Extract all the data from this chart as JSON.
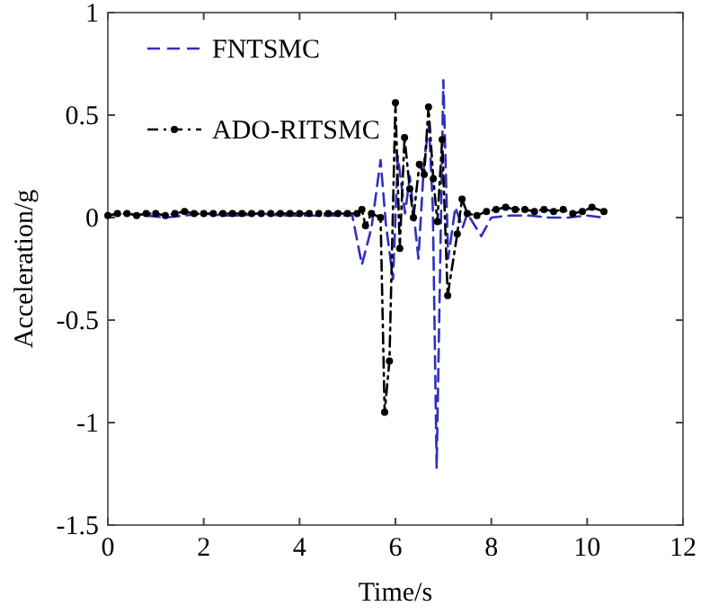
{
  "chart_data": {
    "type": "line",
    "xlabel": "Time/s",
    "ylabel": "Acceleration/g",
    "xlim": [
      0,
      12
    ],
    "ylim": [
      -1.5,
      1
    ],
    "xticks": [
      0,
      2,
      4,
      6,
      8,
      10,
      12
    ],
    "yticks": [
      -1.5,
      -1,
      -0.5,
      0,
      0.5,
      1
    ],
    "grid": false,
    "legend": "top left",
    "series": [
      {
        "name": "FNTSMC",
        "color": "#2f2fbf",
        "line_style": "dashed",
        "marker": "none",
        "x": [
          0,
          0.4,
          0.8,
          1.2,
          1.6,
          2.0,
          2.4,
          2.8,
          3.2,
          3.6,
          4.0,
          4.4,
          4.8,
          5.1,
          5.3,
          5.5,
          5.69,
          5.8,
          5.95,
          6.05,
          6.2,
          6.3,
          6.48,
          6.6,
          6.7,
          6.78,
          6.86,
          7.0,
          7.1,
          7.25,
          7.4,
          7.5,
          7.79,
          8.0,
          8.4,
          8.8,
          9.2,
          9.6,
          10.0,
          10.35
        ],
        "values": [
          0.01,
          0.02,
          0.01,
          0.0,
          0.01,
          0.02,
          0.01,
          0.01,
          0.02,
          0.01,
          0.01,
          0.01,
          0.01,
          0.01,
          -0.23,
          -0.05,
          0.28,
          -0.03,
          -0.3,
          0.3,
          0.02,
          0.2,
          -0.2,
          0.28,
          0.45,
          0.05,
          -1.22,
          0.67,
          -0.2,
          0.05,
          -0.05,
          0.02,
          -0.09,
          0.0,
          0.01,
          0.01,
          0.0,
          0.0,
          0.01,
          0.0
        ]
      },
      {
        "name": "ADO-RITSMC",
        "color": "#000000",
        "line_style": "dashdot",
        "marker": "circle",
        "x": [
          0,
          0.2,
          0.4,
          0.6,
          0.8,
          1.0,
          1.2,
          1.4,
          1.6,
          1.8,
          2.0,
          2.2,
          2.4,
          2.6,
          2.8,
          3.0,
          3.2,
          3.4,
          3.6,
          3.8,
          4.0,
          4.2,
          4.4,
          4.6,
          4.8,
          5.0,
          5.2,
          5.3,
          5.375,
          5.5,
          5.69,
          5.775,
          5.875,
          6.0,
          6.09,
          6.19,
          6.3,
          6.375,
          6.5,
          6.6,
          6.69,
          6.79,
          6.875,
          6.975,
          7.09,
          7.29,
          7.39,
          7.5,
          7.7,
          7.9,
          8.1,
          8.3,
          8.5,
          8.7,
          8.9,
          9.1,
          9.3,
          9.5,
          9.7,
          9.9,
          10.1,
          10.35
        ],
        "values": [
          0.01,
          0.02,
          0.02,
          0.01,
          0.02,
          0.02,
          0.01,
          0.02,
          0.03,
          0.02,
          0.02,
          0.02,
          0.02,
          0.02,
          0.02,
          0.02,
          0.02,
          0.02,
          0.02,
          0.02,
          0.02,
          0.02,
          0.02,
          0.02,
          0.02,
          0.02,
          0.02,
          0.04,
          -0.04,
          0.02,
          0.0,
          -0.95,
          -0.7,
          0.56,
          -0.15,
          0.39,
          0.14,
          0.0,
          0.26,
          0.21,
          0.54,
          0.19,
          -0.02,
          0.38,
          -0.38,
          -0.08,
          0.09,
          0.02,
          0.01,
          0.03,
          0.04,
          0.05,
          0.04,
          0.04,
          0.03,
          0.04,
          0.03,
          0.04,
          0.02,
          0.03,
          0.05,
          0.03
        ]
      }
    ]
  }
}
